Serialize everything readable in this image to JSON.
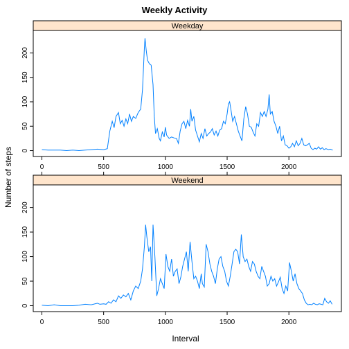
{
  "chart_data": {
    "type": "line",
    "title": "Weekly Activity",
    "xlabel": "Interval",
    "ylabel": "Number of steps",
    "xlim": [
      -70,
      2425
    ],
    "ylim": [
      -12,
      246
    ],
    "x_ticks": [
      0,
      500,
      1000,
      1500,
      2000
    ],
    "y_ticks": [
      0,
      50,
      100,
      150,
      200
    ],
    "grid": false,
    "line_color": "#0080ff",
    "strip_color": "#ffe5cc",
    "panels": [
      {
        "name": "Weekday",
        "points": [
          [
            0,
            2
          ],
          [
            50,
            1
          ],
          [
            100,
            1
          ],
          [
            150,
            1
          ],
          [
            200,
            0
          ],
          [
            250,
            1
          ],
          [
            300,
            0
          ],
          [
            350,
            1
          ],
          [
            400,
            2
          ],
          [
            450,
            3
          ],
          [
            500,
            2
          ],
          [
            530,
            4
          ],
          [
            550,
            40
          ],
          [
            570,
            60
          ],
          [
            585,
            47
          ],
          [
            600,
            70
          ],
          [
            620,
            78
          ],
          [
            635,
            55
          ],
          [
            650,
            62
          ],
          [
            665,
            50
          ],
          [
            680,
            65
          ],
          [
            695,
            55
          ],
          [
            710,
            75
          ],
          [
            725,
            60
          ],
          [
            740,
            70
          ],
          [
            760,
            66
          ],
          [
            780,
            78
          ],
          [
            800,
            85
          ],
          [
            815,
            125
          ],
          [
            830,
            210
          ],
          [
            835,
            230
          ],
          [
            845,
            205
          ],
          [
            855,
            185
          ],
          [
            870,
            178
          ],
          [
            885,
            175
          ],
          [
            900,
            135
          ],
          [
            910,
            70
          ],
          [
            920,
            35
          ],
          [
            935,
            45
          ],
          [
            950,
            25
          ],
          [
            960,
            20
          ],
          [
            975,
            38
          ],
          [
            990,
            28
          ],
          [
            1000,
            48
          ],
          [
            1010,
            32
          ],
          [
            1030,
            25
          ],
          [
            1050,
            28
          ],
          [
            1070,
            26
          ],
          [
            1090,
            25
          ],
          [
            1105,
            15
          ],
          [
            1120,
            40
          ],
          [
            1135,
            55
          ],
          [
            1150,
            60
          ],
          [
            1165,
            45
          ],
          [
            1180,
            62
          ],
          [
            1195,
            50
          ],
          [
            1205,
            85
          ],
          [
            1215,
            60
          ],
          [
            1230,
            70
          ],
          [
            1245,
            42
          ],
          [
            1260,
            30
          ],
          [
            1275,
            18
          ],
          [
            1290,
            35
          ],
          [
            1305,
            25
          ],
          [
            1320,
            45
          ],
          [
            1335,
            30
          ],
          [
            1350,
            35
          ],
          [
            1365,
            38
          ],
          [
            1380,
            45
          ],
          [
            1395,
            32
          ],
          [
            1410,
            40
          ],
          [
            1425,
            30
          ],
          [
            1440,
            42
          ],
          [
            1455,
            45
          ],
          [
            1470,
            60
          ],
          [
            1485,
            55
          ],
          [
            1500,
            75
          ],
          [
            1510,
            95
          ],
          [
            1520,
            100
          ],
          [
            1530,
            85
          ],
          [
            1545,
            60
          ],
          [
            1560,
            70
          ],
          [
            1575,
            55
          ],
          [
            1590,
            40
          ],
          [
            1605,
            30
          ],
          [
            1620,
            20
          ],
          [
            1635,
            65
          ],
          [
            1650,
            90
          ],
          [
            1665,
            75
          ],
          [
            1680,
            50
          ],
          [
            1695,
            48
          ],
          [
            1710,
            38
          ],
          [
            1725,
            30
          ],
          [
            1740,
            55
          ],
          [
            1755,
            50
          ],
          [
            1770,
            78
          ],
          [
            1785,
            70
          ],
          [
            1800,
            80
          ],
          [
            1815,
            70
          ],
          [
            1830,
            85
          ],
          [
            1840,
            115
          ],
          [
            1850,
            75
          ],
          [
            1865,
            80
          ],
          [
            1880,
            60
          ],
          [
            1895,
            50
          ],
          [
            1910,
            35
          ],
          [
            1925,
            50
          ],
          [
            1940,
            20
          ],
          [
            1955,
            30
          ],
          [
            1970,
            12
          ],
          [
            1985,
            10
          ],
          [
            2000,
            5
          ],
          [
            2015,
            8
          ],
          [
            2030,
            15
          ],
          [
            2045,
            8
          ],
          [
            2060,
            20
          ],
          [
            2075,
            10
          ],
          [
            2090,
            15
          ],
          [
            2105,
            25
          ],
          [
            2120,
            12
          ],
          [
            2135,
            10
          ],
          [
            2150,
            12
          ],
          [
            2165,
            15
          ],
          [
            2180,
            5
          ],
          [
            2195,
            2
          ],
          [
            2210,
            5
          ],
          [
            2225,
            3
          ],
          [
            2240,
            8
          ],
          [
            2255,
            3
          ],
          [
            2270,
            6
          ],
          [
            2285,
            2
          ],
          [
            2300,
            4
          ],
          [
            2320,
            2
          ],
          [
            2335,
            3
          ],
          [
            2355,
            1
          ]
        ]
      },
      {
        "name": "Weekend",
        "points": [
          [
            0,
            1
          ],
          [
            50,
            0
          ],
          [
            100,
            2
          ],
          [
            150,
            0
          ],
          [
            200,
            0
          ],
          [
            250,
            0
          ],
          [
            300,
            1
          ],
          [
            350,
            3
          ],
          [
            400,
            2
          ],
          [
            450,
            5
          ],
          [
            470,
            3
          ],
          [
            500,
            4
          ],
          [
            520,
            3
          ],
          [
            540,
            8
          ],
          [
            560,
            5
          ],
          [
            580,
            12
          ],
          [
            600,
            8
          ],
          [
            620,
            20
          ],
          [
            640,
            15
          ],
          [
            660,
            22
          ],
          [
            680,
            18
          ],
          [
            700,
            25
          ],
          [
            720,
            12
          ],
          [
            740,
            30
          ],
          [
            760,
            40
          ],
          [
            780,
            35
          ],
          [
            800,
            50
          ],
          [
            815,
            75
          ],
          [
            830,
            120
          ],
          [
            840,
            165
          ],
          [
            850,
            140
          ],
          [
            865,
            110
          ],
          [
            880,
            120
          ],
          [
            890,
            50
          ],
          [
            900,
            165
          ],
          [
            915,
            100
          ],
          [
            930,
            20
          ],
          [
            945,
            35
          ],
          [
            960,
            55
          ],
          [
            975,
            45
          ],
          [
            990,
            35
          ],
          [
            1005,
            105
          ],
          [
            1020,
            80
          ],
          [
            1035,
            70
          ],
          [
            1050,
            95
          ],
          [
            1065,
            60
          ],
          [
            1080,
            70
          ],
          [
            1095,
            75
          ],
          [
            1110,
            45
          ],
          [
            1125,
            58
          ],
          [
            1140,
            80
          ],
          [
            1155,
            95
          ],
          [
            1170,
            110
          ],
          [
            1185,
            70
          ],
          [
            1200,
            130
          ],
          [
            1215,
            90
          ],
          [
            1230,
            55
          ],
          [
            1245,
            60
          ],
          [
            1260,
            50
          ],
          [
            1275,
            35
          ],
          [
            1290,
            65
          ],
          [
            1300,
            45
          ],
          [
            1315,
            38
          ],
          [
            1330,
            125
          ],
          [
            1345,
            110
          ],
          [
            1360,
            85
          ],
          [
            1375,
            70
          ],
          [
            1390,
            60
          ],
          [
            1405,
            45
          ],
          [
            1420,
            75
          ],
          [
            1435,
            95
          ],
          [
            1450,
            100
          ],
          [
            1465,
            80
          ],
          [
            1480,
            70
          ],
          [
            1495,
            50
          ],
          [
            1510,
            40
          ],
          [
            1525,
            60
          ],
          [
            1540,
            85
          ],
          [
            1555,
            110
          ],
          [
            1570,
            115
          ],
          [
            1585,
            110
          ],
          [
            1600,
            85
          ],
          [
            1615,
            145
          ],
          [
            1630,
            100
          ],
          [
            1645,
            90
          ],
          [
            1660,
            95
          ],
          [
            1675,
            80
          ],
          [
            1690,
            70
          ],
          [
            1705,
            90
          ],
          [
            1720,
            85
          ],
          [
            1735,
            70
          ],
          [
            1750,
            60
          ],
          [
            1765,
            55
          ],
          [
            1780,
            80
          ],
          [
            1795,
            70
          ],
          [
            1810,
            60
          ],
          [
            1825,
            40
          ],
          [
            1840,
            45
          ],
          [
            1855,
            60
          ],
          [
            1870,
            50
          ],
          [
            1885,
            55
          ],
          [
            1900,
            40
          ],
          [
            1915,
            48
          ],
          [
            1930,
            58
          ],
          [
            1945,
            35
          ],
          [
            1960,
            25
          ],
          [
            1975,
            40
          ],
          [
            1990,
            30
          ],
          [
            2005,
            88
          ],
          [
            2020,
            70
          ],
          [
            2035,
            50
          ],
          [
            2050,
            65
          ],
          [
            2065,
            45
          ],
          [
            2080,
            35
          ],
          [
            2095,
            30
          ],
          [
            2110,
            25
          ],
          [
            2125,
            12
          ],
          [
            2140,
            5
          ],
          [
            2155,
            2
          ],
          [
            2170,
            3
          ],
          [
            2185,
            2
          ],
          [
            2200,
            5
          ],
          [
            2215,
            3
          ],
          [
            2230,
            2
          ],
          [
            2245,
            4
          ],
          [
            2260,
            3
          ],
          [
            2275,
            2
          ],
          [
            2290,
            15
          ],
          [
            2305,
            8
          ],
          [
            2320,
            5
          ],
          [
            2335,
            10
          ],
          [
            2350,
            3
          ]
        ]
      }
    ]
  }
}
